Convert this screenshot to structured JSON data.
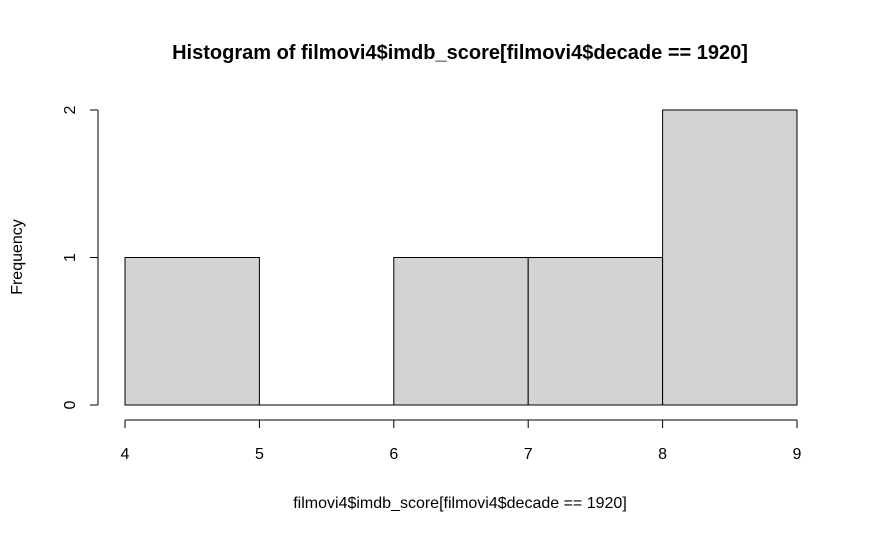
{
  "chart_data": {
    "type": "bar",
    "title": "Histogram of filmovi4$imdb_score[filmovi4$decade == 1920]",
    "xlabel": "filmovi4$imdb_score[filmovi4$decade == 1920]",
    "ylabel": "Frequency",
    "bins": [
      {
        "from": 4,
        "to": 5,
        "count": 1
      },
      {
        "from": 5,
        "to": 6,
        "count": 0
      },
      {
        "from": 6,
        "to": 7,
        "count": 1
      },
      {
        "from": 7,
        "to": 8,
        "count": 1
      },
      {
        "from": 8,
        "to": 9,
        "count": 2
      }
    ],
    "xlim": [
      4,
      9
    ],
    "ylim": [
      0,
      2
    ],
    "x_ticks": [
      4,
      5,
      6,
      7,
      8,
      9
    ],
    "y_ticks": [
      0,
      1,
      2
    ],
    "bar_color": "#d3d3d3",
    "grid": false
  }
}
